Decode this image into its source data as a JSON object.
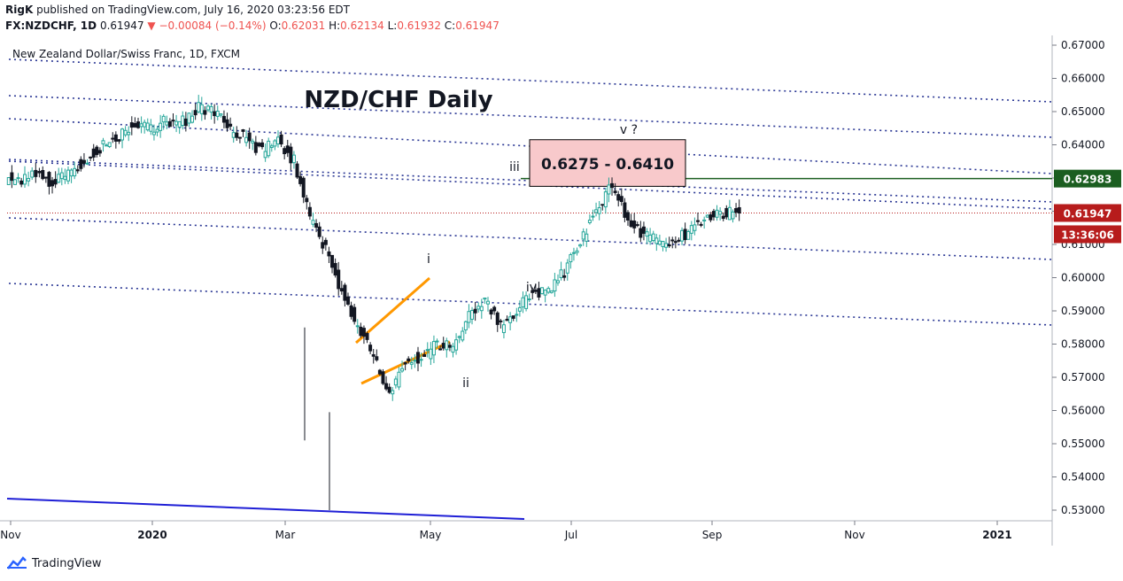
{
  "header": {
    "author": "RigK",
    "published_text": "published on TradingView.com, July 16, 2020 03:23:56 EDT",
    "symbol": "FX:NZDCHF, 1D",
    "last": "0.61947",
    "change": "−0.00084 (−0.14%)",
    "open_label": "O:",
    "open": "0.62031",
    "high_label": "H:",
    "high": "0.62134",
    "low_label": "L:",
    "low": "0.61932",
    "close_label": "C:",
    "close": "0.61947"
  },
  "footer": {
    "brand": "TradingView"
  },
  "chart_data": {
    "type": "candlestick",
    "legend": "New Zealand Dollar/Swiss Franc, 1D, FXCM",
    "title": "NZD/CHF Daily",
    "ylim": [
      0.53,
      0.67
    ],
    "y_ticks": [
      "0.67000",
      "0.66000",
      "0.65000",
      "0.64000",
      "0.63000",
      "0.62000",
      "0.61000",
      "0.60000",
      "0.59000",
      "0.58000",
      "0.57000",
      "0.56000",
      "0.55000",
      "0.54000",
      "0.53000"
    ],
    "x_ticks": [
      "Nov",
      "2020",
      "Mar",
      "May",
      "Jul",
      "Sep",
      "Nov",
      "2021"
    ],
    "price_label": "0.61947",
    "countdown": "13:36:06",
    "level_label": "0.62983",
    "level": 0.62983,
    "target_box": "0.6275 - 0.6410",
    "wave_labels": [
      "i",
      "ii",
      "iii",
      "iv",
      "v ?"
    ],
    "colors": {
      "up": "#26a69a",
      "down": "#131722",
      "level": "#1b5e20",
      "price": "#b71c1c",
      "target_fill": "#f8c9cb",
      "wedge": "#ff9800",
      "channel": "#1a237e",
      "support": "#1f1fd6"
    },
    "path": [
      [
        "2019-10-28",
        0.63
      ],
      [
        "2019-11-04",
        0.6295
      ],
      [
        "2019-11-12",
        0.631
      ],
      [
        "2019-11-19",
        0.6285
      ],
      [
        "2019-11-26",
        0.632
      ],
      [
        "2019-12-03",
        0.636
      ],
      [
        "2019-12-10",
        0.64
      ],
      [
        "2019-12-17",
        0.643
      ],
      [
        "2019-12-24",
        0.647
      ],
      [
        "2019-12-31",
        0.645
      ],
      [
        "2020-01-07",
        0.6475
      ],
      [
        "2020-01-14",
        0.647
      ],
      [
        "2020-01-21",
        0.651
      ],
      [
        "2020-01-28",
        0.65
      ],
      [
        "2020-02-04",
        0.644
      ],
      [
        "2020-02-11",
        0.642
      ],
      [
        "2020-02-18",
        0.638
      ],
      [
        "2020-02-25",
        0.641
      ],
      [
        "2020-03-03",
        0.635
      ],
      [
        "2020-03-10",
        0.618
      ],
      [
        "2020-03-17",
        0.608
      ],
      [
        "2020-03-24",
        0.596
      ],
      [
        "2020-03-31",
        0.585
      ],
      [
        "2020-04-07",
        0.576
      ],
      [
        "2020-04-14",
        0.565
      ],
      [
        "2020-04-21",
        0.575
      ],
      [
        "2020-04-28",
        0.576
      ],
      [
        "2020-05-05",
        0.58
      ],
      [
        "2020-05-12",
        0.579
      ],
      [
        "2020-05-19",
        0.588
      ],
      [
        "2020-05-26",
        0.593
      ],
      [
        "2020-06-02",
        0.585
      ],
      [
        "2020-06-09",
        0.59
      ],
      [
        "2020-06-16",
        0.596
      ],
      [
        "2020-06-23",
        0.595
      ],
      [
        "2020-06-30",
        0.602
      ],
      [
        "2020-07-07",
        0.611
      ],
      [
        "2020-07-14",
        0.62
      ],
      [
        "2020-07-21",
        0.628
      ],
      [
        "2020-07-28",
        0.618
      ],
      [
        "2020-08-04",
        0.613
      ],
      [
        "2020-08-11",
        0.61
      ],
      [
        "2020-08-18",
        0.611
      ],
      [
        "2020-08-25",
        0.615
      ],
      [
        "2020-09-01",
        0.618
      ],
      [
        "2020-09-08",
        0.619
      ],
      [
        "2020-09-15",
        0.6195
      ]
    ]
  }
}
